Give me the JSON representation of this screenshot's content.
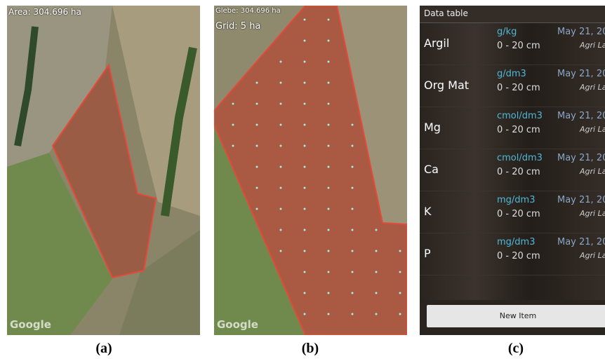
{
  "panels": [
    {
      "caption": "(a)",
      "overlay": [
        "Area: 304.696 ha"
      ],
      "watermark": "Google"
    },
    {
      "caption": "(b)",
      "overlay": [
        "Glebe: 304.696 ha",
        "Grid: 5 ha"
      ],
      "watermark": "Google"
    },
    {
      "caption": "(c)",
      "title": "Data table",
      "rows": [
        {
          "name": "Argil",
          "unit": "g/kg",
          "depth": "0 - 20 cm",
          "date": "May 21, 20",
          "lab": "Agri La"
        },
        {
          "name": "Org Mat",
          "unit": "g/dm3",
          "depth": "0 - 20 cm",
          "date": "May 21, 20",
          "lab": "Agri La"
        },
        {
          "name": "Mg",
          "unit": "cmol/dm3",
          "depth": "0 - 20 cm",
          "date": "May 21, 20",
          "lab": "Agri La"
        },
        {
          "name": "Ca",
          "unit": "cmol/dm3",
          "depth": "0 - 20 cm",
          "date": "May 21, 20",
          "lab": "Agri La"
        },
        {
          "name": "K",
          "unit": "mg/dm3",
          "depth": "0 - 20 cm",
          "date": "May 21, 20",
          "lab": "Agri La"
        },
        {
          "name": "P",
          "unit": "mg/dm3",
          "depth": "0 - 20 cm",
          "date": "May 21, 20",
          "lab": "Agri La"
        }
      ],
      "button": "New Item"
    }
  ]
}
